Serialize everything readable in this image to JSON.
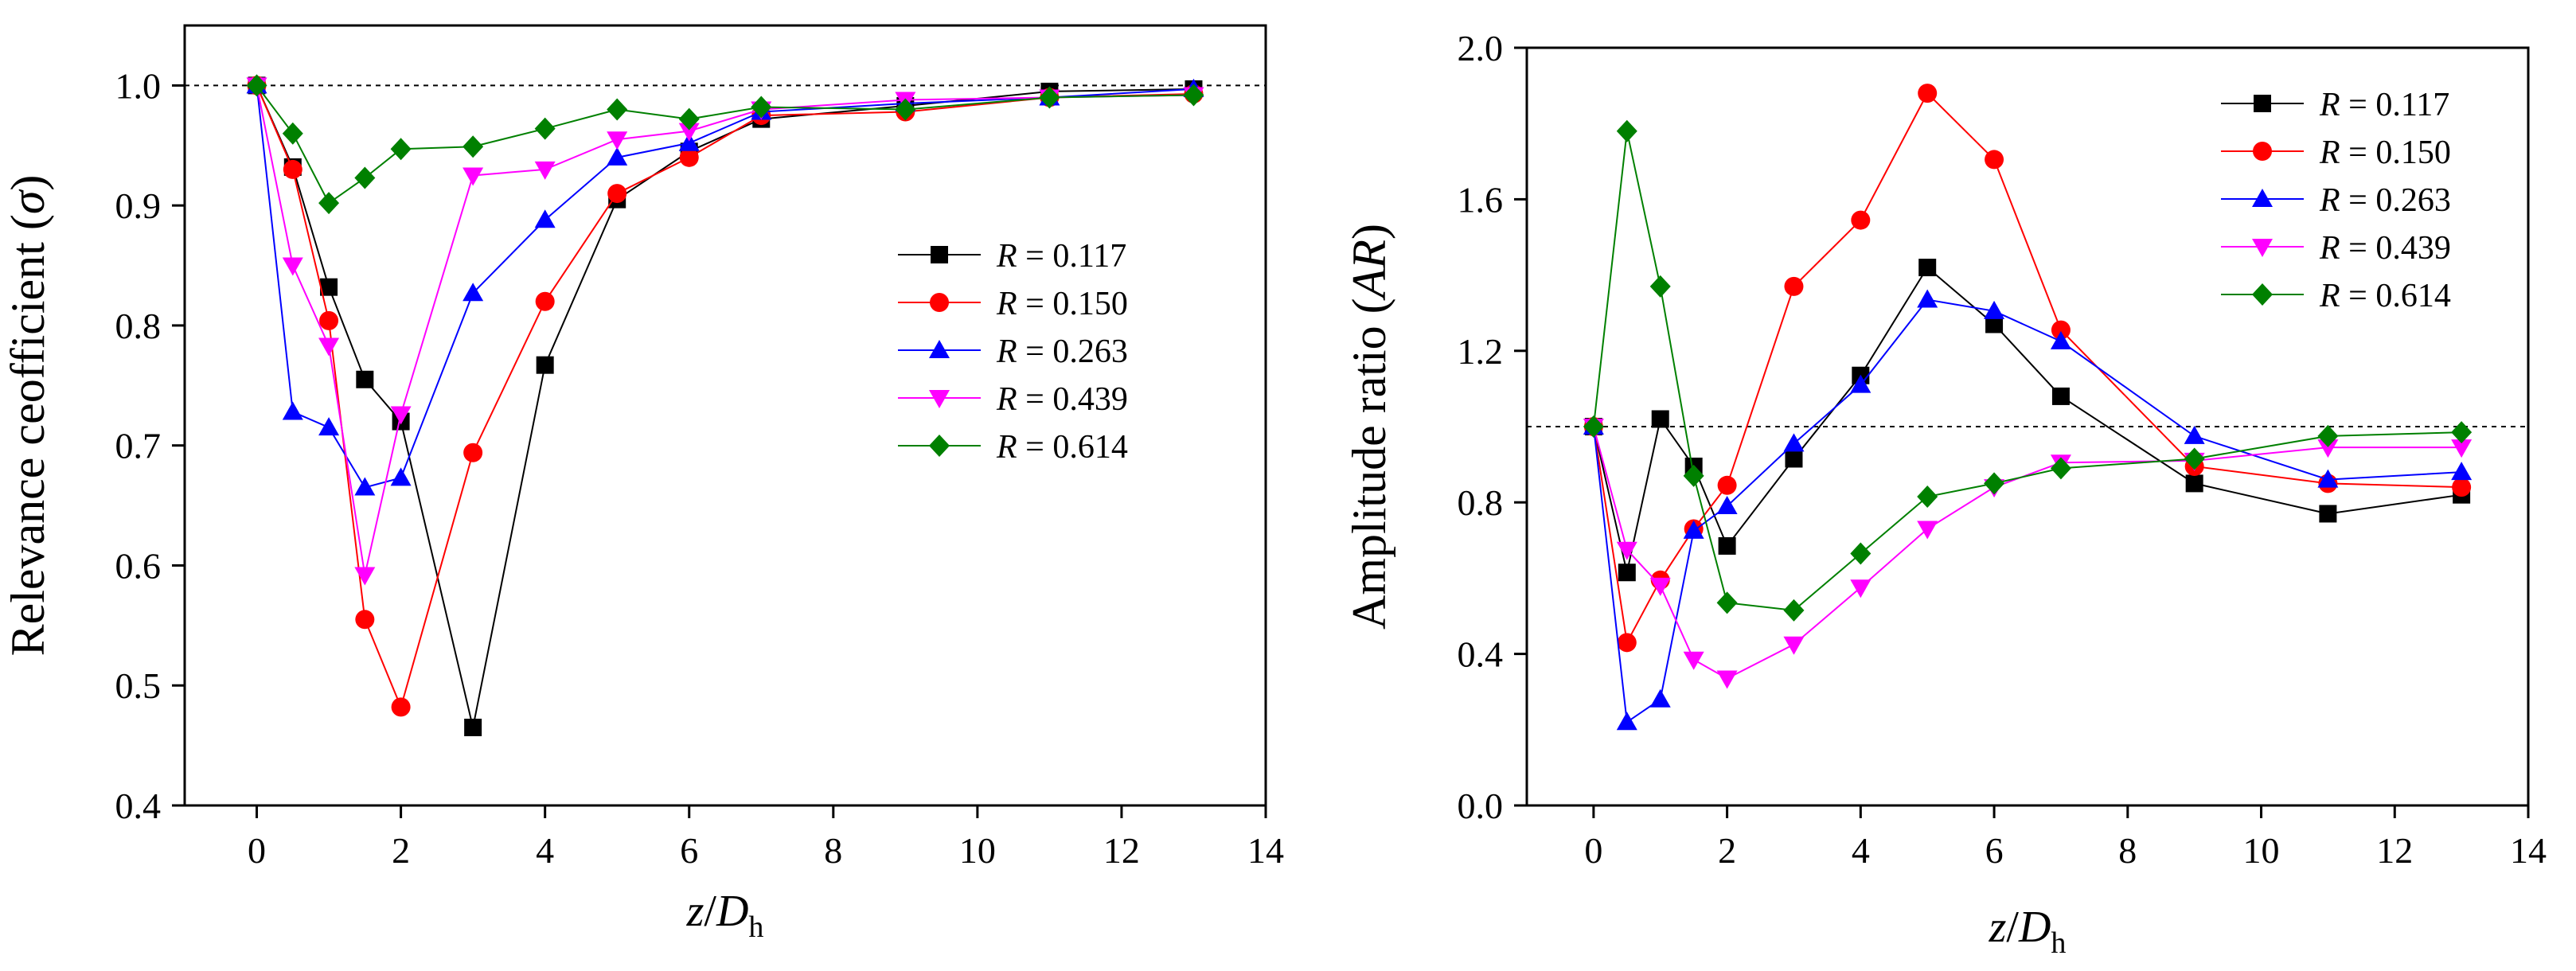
{
  "chart_data": [
    {
      "type": "line",
      "panel": "left",
      "title": "",
      "ylabel_main": "Relevance ceofficient (",
      "ylabel_symbol": "σ",
      "ylabel_close": ")",
      "xlabel_var": "z",
      "xlabel_slash": "/",
      "xlabel_D": "D",
      "xlabel_sub": "h",
      "xlim": [
        -1,
        14
      ],
      "ylim": [
        0.4,
        1.05
      ],
      "xticks": [
        0,
        2,
        4,
        6,
        8,
        10,
        12,
        14
      ],
      "xtick_labels": [
        "0",
        "2",
        "4",
        "6",
        "8",
        "10",
        "12",
        "14"
      ],
      "yticks": [
        0.4,
        0.5,
        0.6,
        0.7,
        0.8,
        0.9,
        1.0
      ],
      "ytick_labels": [
        "0.4",
        "0.5",
        "0.6",
        "0.7",
        "0.8",
        "0.9",
        "1.0"
      ],
      "reference_line": 1.0,
      "legend_position": "center-right",
      "x": [
        0,
        0.5,
        1,
        1.5,
        2,
        3,
        4,
        5,
        6,
        7,
        9,
        11,
        13
      ],
      "series": [
        {
          "name_var": "R",
          "name_value": " = 0.117",
          "color": "#000000",
          "marker": "square",
          "values": [
            1.0,
            0.932,
            0.832,
            0.755,
            0.72,
            0.465,
            0.767,
            0.905,
            0.945,
            0.972,
            0.983,
            0.995,
            0.997
          ]
        },
        {
          "name_var": "R",
          "name_value": " = 0.150",
          "color": "#ff0000",
          "marker": "circle",
          "values": [
            1.0,
            0.93,
            0.804,
            0.555,
            0.482,
            0.694,
            0.82,
            0.91,
            0.94,
            0.975,
            0.978,
            0.99,
            0.993
          ]
        },
        {
          "name_var": "R",
          "name_value": " = 0.263",
          "color": "#0000ff",
          "marker": "triangle-up",
          "values": [
            1.0,
            0.728,
            0.715,
            0.665,
            0.673,
            0.827,
            0.888,
            0.94,
            0.952,
            0.978,
            0.985,
            0.99,
            0.997
          ]
        },
        {
          "name_var": "R",
          "name_value": " = 0.439",
          "color": "#ff00ff",
          "marker": "triangle-down",
          "values": [
            1.0,
            0.85,
            0.783,
            0.592,
            0.726,
            0.925,
            0.93,
            0.955,
            0.962,
            0.98,
            0.988,
            0.99,
            0.992
          ]
        },
        {
          "name_var": "R",
          "name_value": " = 0.614",
          "color": "#008000",
          "marker": "diamond",
          "values": [
            1.0,
            0.96,
            0.902,
            0.923,
            0.947,
            0.949,
            0.964,
            0.98,
            0.972,
            0.982,
            0.98,
            0.99,
            0.992
          ]
        }
      ]
    },
    {
      "type": "line",
      "panel": "right",
      "title": "",
      "ylabel_main": "Amplitude ratio (",
      "ylabel_symbol": "AR",
      "ylabel_close": ")",
      "xlabel_var": "z",
      "xlabel_slash": "/",
      "xlabel_D": "D",
      "xlabel_sub": "h",
      "xlim": [
        -1,
        14
      ],
      "ylim": [
        0.0,
        2.0
      ],
      "xticks": [
        0,
        2,
        4,
        6,
        8,
        10,
        12,
        14
      ],
      "xtick_labels": [
        "0",
        "2",
        "4",
        "6",
        "8",
        "10",
        "12",
        "14"
      ],
      "yticks": [
        0.0,
        0.4,
        0.8,
        1.2,
        1.6,
        2.0
      ],
      "ytick_labels": [
        "0.0",
        "0.4",
        "0.8",
        "1.2",
        "1.6",
        "2.0"
      ],
      "reference_line": 1.0,
      "legend_position": "top-right",
      "x": [
        0,
        0.5,
        1,
        1.5,
        2,
        3,
        4,
        5,
        6,
        7,
        9,
        11,
        13
      ],
      "series": [
        {
          "name_var": "R",
          "name_value": " = 0.117",
          "color": "#000000",
          "marker": "square",
          "values": [
            1.0,
            0.615,
            1.02,
            0.895,
            0.685,
            0.915,
            1.135,
            1.42,
            1.27,
            1.08,
            0.85,
            0.77,
            0.82
          ]
        },
        {
          "name_var": "R",
          "name_value": " = 0.150",
          "color": "#ff0000",
          "marker": "circle",
          "values": [
            1.0,
            0.43,
            0.595,
            0.73,
            0.845,
            1.37,
            1.545,
            1.88,
            1.705,
            1.255,
            0.895,
            0.85,
            0.84
          ]
        },
        {
          "name_var": "R",
          "name_value": " = 0.263",
          "color": "#0000ff",
          "marker": "triangle-up",
          "values": [
            1.0,
            0.22,
            0.28,
            0.725,
            0.79,
            0.955,
            1.11,
            1.335,
            1.305,
            1.225,
            0.975,
            0.86,
            0.88
          ]
        },
        {
          "name_var": "R",
          "name_value": " = 0.439",
          "color": "#ff00ff",
          "marker": "triangle-down",
          "values": [
            1.0,
            0.675,
            0.58,
            0.385,
            0.335,
            0.425,
            0.575,
            0.73,
            0.84,
            0.905,
            0.91,
            0.945,
            0.945
          ]
        },
        {
          "name_var": "R",
          "name_value": " = 0.614",
          "color": "#008000",
          "marker": "diamond",
          "values": [
            1.0,
            1.78,
            1.37,
            0.87,
            0.535,
            0.515,
            0.665,
            0.815,
            0.85,
            0.89,
            0.915,
            0.975,
            0.985
          ]
        }
      ]
    }
  ]
}
